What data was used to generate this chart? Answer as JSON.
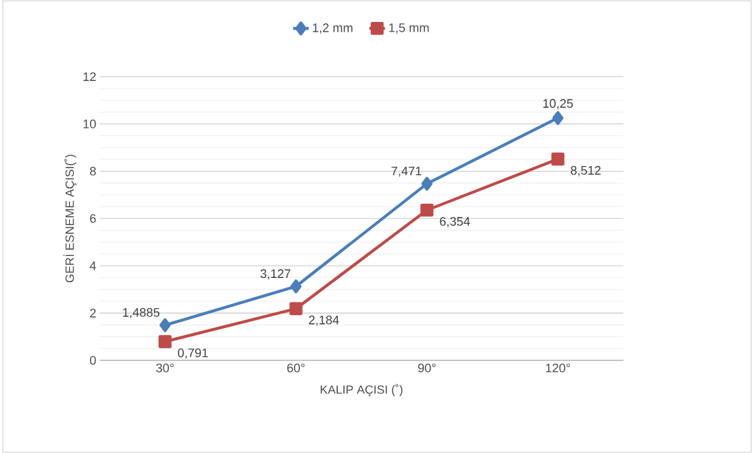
{
  "chart_data": {
    "type": "line",
    "xlabel": "KALIP AÇISI (˚)",
    "ylabel": "GERİ ESNEME AÇISI(˚)",
    "categories": [
      "30°",
      "60°",
      "90°",
      "120°"
    ],
    "series": [
      {
        "name": "1,2 mm",
        "color": "#4a7ebb",
        "marker": "diamond",
        "values": [
          1.4885,
          3.127,
          7.471,
          10.25
        ],
        "value_labels": [
          "1,4885",
          "3,127",
          "7,471",
          "10,25"
        ]
      },
      {
        "name": "1,5 mm",
        "color": "#be4b48",
        "marker": "square",
        "values": [
          0.791,
          2.184,
          6.354,
          8.512
        ],
        "value_labels": [
          "0,791",
          "2,184",
          "6,354",
          "8,512"
        ]
      }
    ],
    "ylim": [
      0,
      12
    ],
    "yticks": [
      0,
      2,
      4,
      6,
      8,
      10,
      12
    ],
    "grid": "y",
    "legend": "top",
    "line_style": "solid"
  }
}
